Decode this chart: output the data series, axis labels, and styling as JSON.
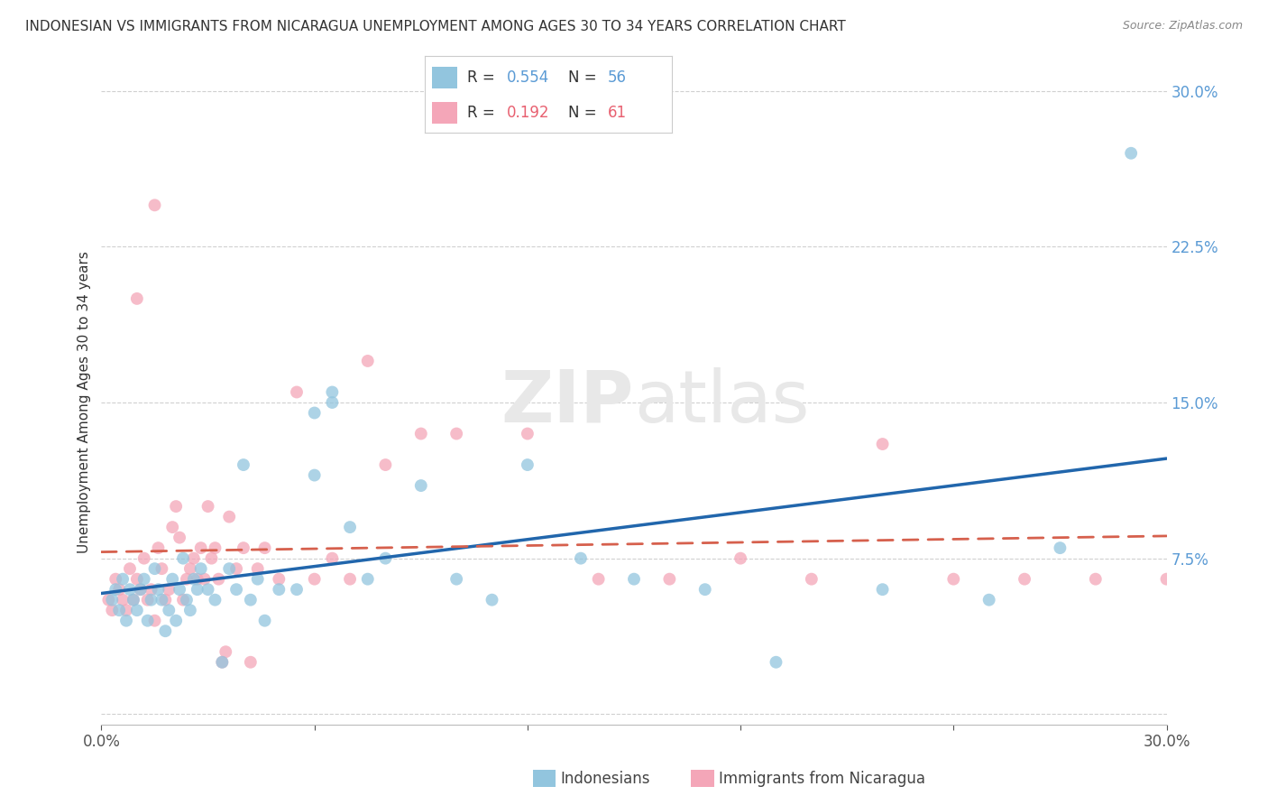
{
  "title": "INDONESIAN VS IMMIGRANTS FROM NICARAGUA UNEMPLOYMENT AMONG AGES 30 TO 34 YEARS CORRELATION CHART",
  "source": "Source: ZipAtlas.com",
  "ylabel": "Unemployment Among Ages 30 to 34 years",
  "xlim": [
    0.0,
    0.3
  ],
  "ylim": [
    -0.005,
    0.305
  ],
  "ytick_vals": [
    0.0,
    0.075,
    0.15,
    0.225,
    0.3
  ],
  "ytick_labels": [
    "",
    "7.5%",
    "15.0%",
    "22.5%",
    "30.0%"
  ],
  "xtick_vals": [
    0.0,
    0.06,
    0.12,
    0.18,
    0.24,
    0.3
  ],
  "xtick_labels": [
    "0.0%",
    "",
    "",
    "",
    "",
    "30.0%"
  ],
  "legend_R1": "0.554",
  "legend_N1": "56",
  "legend_R2": "0.192",
  "legend_N2": "61",
  "color_blue": "#92c5de",
  "color_pink": "#f4a6b8",
  "line_blue": "#2166ac",
  "line_pink": "#d6604d",
  "indonesians_x": [
    0.003,
    0.004,
    0.005,
    0.006,
    0.007,
    0.008,
    0.009,
    0.01,
    0.011,
    0.012,
    0.013,
    0.014,
    0.015,
    0.016,
    0.017,
    0.018,
    0.019,
    0.02,
    0.021,
    0.022,
    0.023,
    0.024,
    0.025,
    0.026,
    0.027,
    0.028,
    0.03,
    0.032,
    0.034,
    0.036,
    0.038,
    0.04,
    0.042,
    0.044,
    0.046,
    0.05,
    0.055,
    0.06,
    0.065,
    0.07,
    0.075,
    0.08,
    0.09,
    0.1,
    0.11,
    0.12,
    0.135,
    0.15,
    0.17,
    0.19,
    0.22,
    0.25,
    0.27,
    0.29,
    0.06,
    0.065
  ],
  "indonesians_y": [
    0.055,
    0.06,
    0.05,
    0.065,
    0.045,
    0.06,
    0.055,
    0.05,
    0.06,
    0.065,
    0.045,
    0.055,
    0.07,
    0.06,
    0.055,
    0.04,
    0.05,
    0.065,
    0.045,
    0.06,
    0.075,
    0.055,
    0.05,
    0.065,
    0.06,
    0.07,
    0.06,
    0.055,
    0.025,
    0.07,
    0.06,
    0.12,
    0.055,
    0.065,
    0.045,
    0.06,
    0.06,
    0.145,
    0.155,
    0.09,
    0.065,
    0.075,
    0.11,
    0.065,
    0.055,
    0.12,
    0.075,
    0.065,
    0.06,
    0.025,
    0.06,
    0.055,
    0.08,
    0.27,
    0.115,
    0.15
  ],
  "nicaragua_x": [
    0.002,
    0.003,
    0.004,
    0.005,
    0.006,
    0.007,
    0.008,
    0.009,
    0.01,
    0.011,
    0.012,
    0.013,
    0.014,
    0.015,
    0.016,
    0.017,
    0.018,
    0.019,
    0.02,
    0.021,
    0.022,
    0.023,
    0.024,
    0.025,
    0.026,
    0.027,
    0.028,
    0.029,
    0.03,
    0.031,
    0.032,
    0.033,
    0.034,
    0.035,
    0.036,
    0.038,
    0.04,
    0.042,
    0.044,
    0.046,
    0.05,
    0.055,
    0.06,
    0.065,
    0.07,
    0.075,
    0.08,
    0.09,
    0.1,
    0.12,
    0.14,
    0.16,
    0.18,
    0.2,
    0.22,
    0.24,
    0.26,
    0.28,
    0.3,
    0.01,
    0.015
  ],
  "nicaragua_y": [
    0.055,
    0.05,
    0.065,
    0.06,
    0.055,
    0.05,
    0.07,
    0.055,
    0.065,
    0.06,
    0.075,
    0.055,
    0.06,
    0.045,
    0.08,
    0.07,
    0.055,
    0.06,
    0.09,
    0.1,
    0.085,
    0.055,
    0.065,
    0.07,
    0.075,
    0.065,
    0.08,
    0.065,
    0.1,
    0.075,
    0.08,
    0.065,
    0.025,
    0.03,
    0.095,
    0.07,
    0.08,
    0.025,
    0.07,
    0.08,
    0.065,
    0.155,
    0.065,
    0.075,
    0.065,
    0.17,
    0.12,
    0.135,
    0.135,
    0.135,
    0.065,
    0.065,
    0.075,
    0.065,
    0.13,
    0.065,
    0.065,
    0.065,
    0.065,
    0.2,
    0.245
  ]
}
